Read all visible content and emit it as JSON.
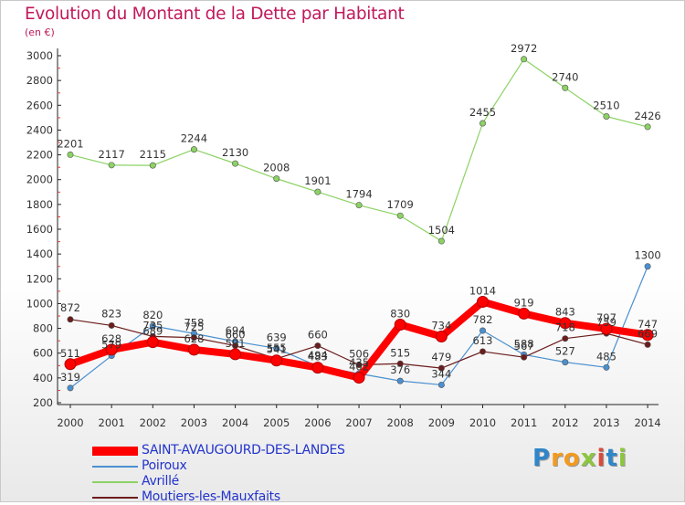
{
  "chart_data": {
    "type": "line",
    "title": "Evolution du Montant de la Dette par Habitant",
    "subtitle": "(en €)",
    "x": [
      "2000",
      "2001",
      "2002",
      "2003",
      "2004",
      "2005",
      "2006",
      "2007",
      "2008",
      "2009",
      "2010",
      "2011",
      "2012",
      "2013",
      "2014"
    ],
    "ylim": [
      200,
      3000
    ],
    "yticks": [
      200,
      400,
      600,
      800,
      1000,
      1200,
      1400,
      1600,
      1800,
      2000,
      2200,
      2400,
      2600,
      2800,
      3000
    ],
    "grid": false,
    "legend_position": "bottom-left",
    "series": [
      {
        "name": "SAINT-AVAUGOURD-DES-LANDES",
        "color": "#ff0000",
        "values": [
          511,
          628,
          689,
          628,
          591,
          541,
          483,
          402,
          830,
          734,
          1014,
          919,
          843,
          797,
          747
        ]
      },
      {
        "name": "Poiroux",
        "color": "#4a90d0",
        "values": [
          319,
          579,
          820,
          758,
          694,
          639,
          494,
          435,
          376,
          344,
          782,
          588,
          527,
          485,
          1300
        ]
      },
      {
        "name": "Avrillé",
        "color": "#8cd264",
        "values": [
          2201,
          2117,
          2115,
          2244,
          2130,
          2008,
          1901,
          1794,
          1709,
          1504,
          2455,
          2972,
          2740,
          2510,
          2426
        ]
      },
      {
        "name": "Moutiers-les-Mauxfaits",
        "color": "#6b1c1c",
        "values": [
          872,
          823,
          735,
          725,
          660,
          555,
          660,
          506,
          515,
          479,
          613,
          567,
          718,
          759,
          669
        ]
      }
    ]
  },
  "brand": {
    "letters": [
      "P",
      "r",
      "o",
      "x",
      "i",
      "t",
      "i"
    ],
    "colors": [
      "#2f86c8",
      "#f29a1f",
      "#f29a1f",
      "#8cc63f",
      "#d84b3b",
      "#2f86c8",
      "#8cc63f"
    ]
  }
}
